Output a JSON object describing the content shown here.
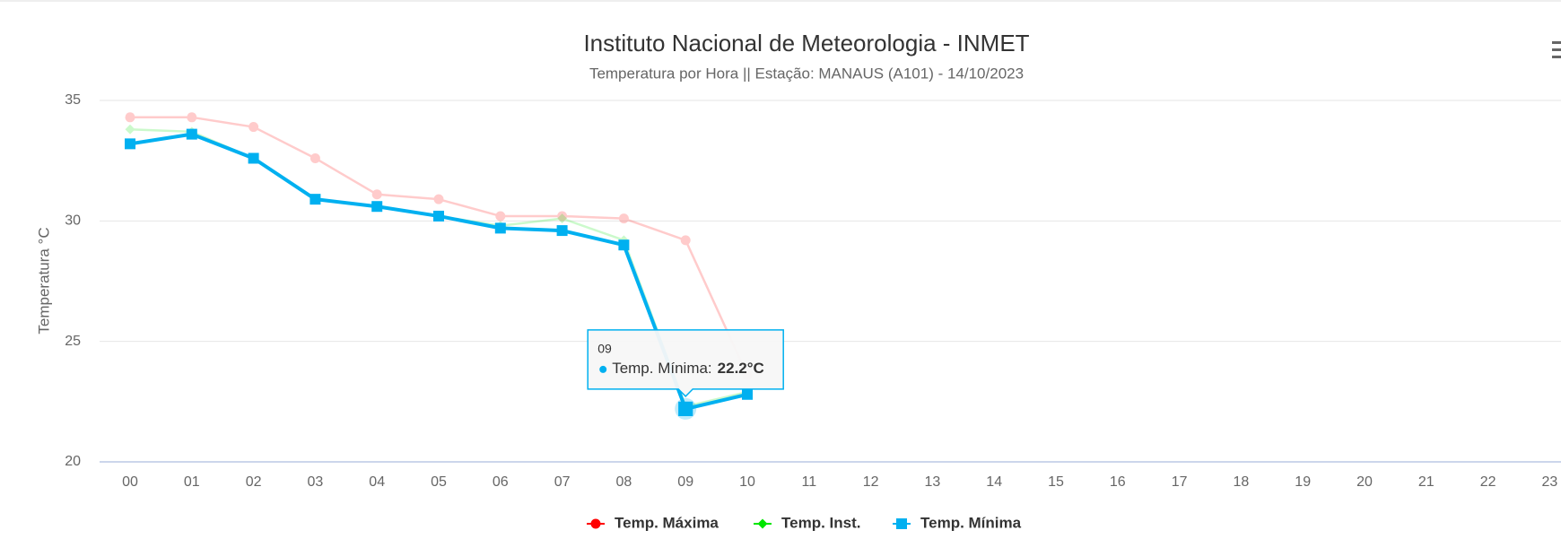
{
  "chart_data": {
    "type": "line",
    "title": "Instituto Nacional de Meteorologia - INMET",
    "subtitle": "Temperatura por Hora || Estação: MANAUS (A101) - 14/10/2023",
    "y_label": "Temperatura °C",
    "categories": [
      "00",
      "01",
      "02",
      "03",
      "04",
      "05",
      "06",
      "07",
      "08",
      "09",
      "10",
      "11",
      "12",
      "13",
      "14",
      "15",
      "16",
      "17",
      "18",
      "19",
      "20",
      "21",
      "22",
      "23"
    ],
    "series": [
      {
        "name": "Temp. Máxima",
        "color": "#ff0000",
        "marker": "circle",
        "values": [
          34.3,
          34.3,
          33.9,
          32.6,
          31.1,
          30.9,
          30.2,
          30.2,
          30.1,
          29.2,
          23.6,
          null,
          null,
          null,
          null,
          null,
          null,
          null,
          null,
          null,
          null,
          null,
          null,
          null
        ]
      },
      {
        "name": "Temp. Inst.",
        "color": "#00e600",
        "marker": "diamond",
        "values": [
          33.8,
          33.7,
          32.6,
          30.9,
          30.6,
          30.2,
          29.8,
          30.1,
          29.2,
          22.3,
          22.9,
          null,
          null,
          null,
          null,
          null,
          null,
          null,
          null,
          null,
          null,
          null,
          null,
          null
        ]
      },
      {
        "name": "Temp. Mínima",
        "color": "#00b0f0",
        "marker": "square",
        "values": [
          33.2,
          33.6,
          32.6,
          30.9,
          30.6,
          30.2,
          29.7,
          29.6,
          29.0,
          22.2,
          22.8,
          null,
          null,
          null,
          null,
          null,
          null,
          null,
          null,
          null,
          null,
          null,
          null,
          null
        ]
      }
    ],
    "highlight": "Temp. Mínima",
    "ylim": [
      20,
      35
    ],
    "yticks": [
      20,
      25,
      30,
      35
    ],
    "grid": true,
    "legend": "bottom",
    "tooltip": {
      "title": "09",
      "label": "Temp. Mínima:",
      "value_label": "22.2°C"
    }
  }
}
